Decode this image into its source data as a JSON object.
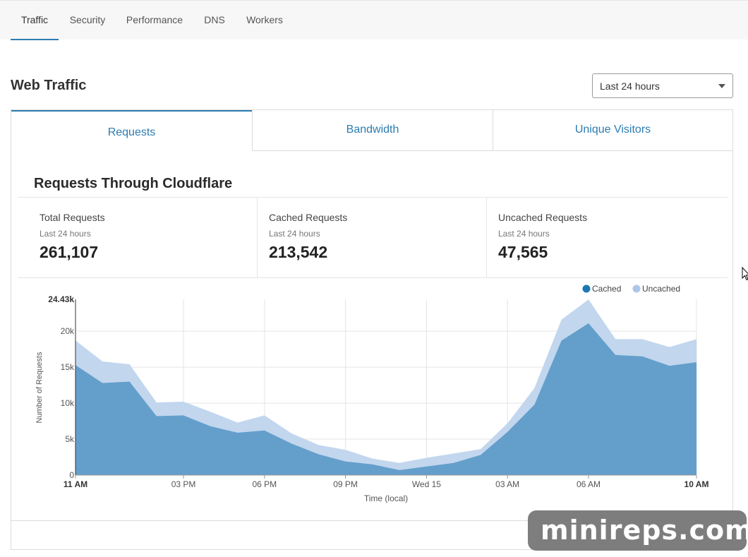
{
  "nav": {
    "tabs": [
      {
        "label": "Traffic",
        "active": true
      },
      {
        "label": "Security"
      },
      {
        "label": "Performance"
      },
      {
        "label": "DNS"
      },
      {
        "label": "Workers"
      }
    ]
  },
  "header": {
    "title": "Web Traffic",
    "range_select": "Last 24 hours"
  },
  "panel": {
    "tabs": [
      {
        "label": "Requests",
        "active": true
      },
      {
        "label": "Bandwidth"
      },
      {
        "label": "Unique Visitors"
      }
    ],
    "section_title": "Requests Through Cloudflare",
    "stats": [
      {
        "label": "Total Requests",
        "sub": "Last 24 hours",
        "value": "261,107"
      },
      {
        "label": "Cached Requests",
        "sub": "Last 24 hours",
        "value": "213,542"
      },
      {
        "label": "Uncached Requests",
        "sub": "Last 24 hours",
        "value": "47,565"
      }
    ]
  },
  "colors": {
    "accent": "#2c7cb0",
    "cached": "#649fcb",
    "cached_legend": "#1f77b4",
    "uncached": "#c2d6ee",
    "uncached_legend": "#aec7e8"
  },
  "chart_data": {
    "type": "area",
    "stacked": true,
    "xlabel": "Time (local)",
    "ylabel": "Number of Requests",
    "ymax_label": "24.43k",
    "ylim": [
      0,
      24430
    ],
    "yticks": [
      {
        "value": 0,
        "label": "0"
      },
      {
        "value": 5000,
        "label": "5k"
      },
      {
        "value": 10000,
        "label": "10k"
      },
      {
        "value": 15000,
        "label": "15k"
      },
      {
        "value": 20000,
        "label": "20k"
      }
    ],
    "xticks": [
      {
        "hour": 0,
        "label": "11 AM",
        "bold": true
      },
      {
        "hour": 4,
        "label": "03 PM"
      },
      {
        "hour": 7,
        "label": "06 PM"
      },
      {
        "hour": 10,
        "label": "09 PM"
      },
      {
        "hour": 13,
        "label": "Wed 15"
      },
      {
        "hour": 16,
        "label": "03 AM"
      },
      {
        "hour": 19,
        "label": "06 AM"
      },
      {
        "hour": 23,
        "label": "10 AM",
        "bold": true
      }
    ],
    "legend_position": "top-right",
    "series": [
      {
        "name": "Cached",
        "values": [
          15300,
          12800,
          13000,
          8200,
          8300,
          6800,
          5900,
          6200,
          4400,
          2900,
          1900,
          1500,
          700,
          1200,
          1700,
          2800,
          6000,
          9800,
          18700,
          21100,
          16700,
          16500,
          15200,
          15700
        ]
      },
      {
        "name": "Uncached",
        "values": [
          3400,
          3000,
          2400,
          1900,
          1900,
          2000,
          1400,
          2100,
          1400,
          1300,
          1600,
          800,
          1000,
          1200,
          1300,
          800,
          1200,
          2300,
          2900,
          3300,
          2200,
          2400,
          2600,
          3200
        ]
      }
    ]
  },
  "watermark": "minireps.com"
}
